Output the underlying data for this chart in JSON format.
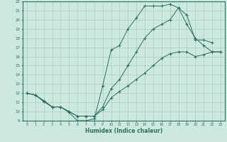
{
  "background_color": "#cce8df",
  "line_color": "#2e6e62",
  "grid_color": "#aacfbf",
  "xlabel": "Humidex (Indice chaleur)",
  "xlim": [
    -0.5,
    23.5
  ],
  "ylim": [
    9,
    22
  ],
  "xticks": [
    0,
    1,
    2,
    3,
    4,
    5,
    6,
    7,
    8,
    9,
    10,
    11,
    12,
    13,
    14,
    15,
    16,
    17,
    18,
    19,
    20,
    21,
    22,
    23
  ],
  "yticks": [
    9,
    10,
    11,
    12,
    13,
    14,
    15,
    16,
    17,
    18,
    19,
    20,
    21,
    22
  ],
  "curve_top_x": [
    0,
    1,
    2,
    3,
    4,
    5,
    6,
    7,
    8,
    9,
    10,
    11,
    12,
    13,
    14,
    15,
    16,
    17,
    18,
    19,
    20,
    21,
    22
  ],
  "curve_top_y": [
    12.0,
    11.8,
    11.1,
    10.5,
    10.5,
    9.9,
    9.0,
    9.0,
    9.2,
    12.8,
    16.7,
    17.2,
    19.0,
    20.2,
    21.5,
    21.5,
    21.5,
    21.7,
    21.3,
    20.5,
    17.8,
    17.8,
    17.5
  ],
  "curve_mid_x": [
    0,
    1,
    2,
    3,
    4,
    5,
    6,
    7,
    8,
    9,
    10,
    11,
    12,
    13,
    14,
    15,
    16,
    17,
    18,
    19,
    20,
    21,
    22,
    23
  ],
  "curve_mid_y": [
    12.0,
    11.8,
    11.1,
    10.5,
    10.5,
    10.0,
    9.5,
    9.5,
    9.5,
    10.5,
    12.5,
    13.5,
    15.0,
    16.5,
    18.0,
    19.0,
    19.5,
    20.0,
    21.3,
    19.5,
    18.0,
    17.2,
    16.5,
    16.5
  ],
  "curve_bot_x": [
    0,
    1,
    2,
    3,
    4,
    5,
    6,
    7,
    8,
    9,
    10,
    11,
    12,
    13,
    14,
    15,
    16,
    17,
    18,
    19,
    20,
    21,
    22,
    23
  ],
  "curve_bot_y": [
    12.0,
    11.8,
    11.2,
    10.5,
    10.5,
    10.0,
    9.5,
    9.5,
    9.5,
    10.2,
    11.5,
    12.2,
    12.8,
    13.5,
    14.2,
    15.0,
    15.8,
    16.3,
    16.5,
    16.5,
    16.0,
    16.2,
    16.5,
    16.5
  ]
}
